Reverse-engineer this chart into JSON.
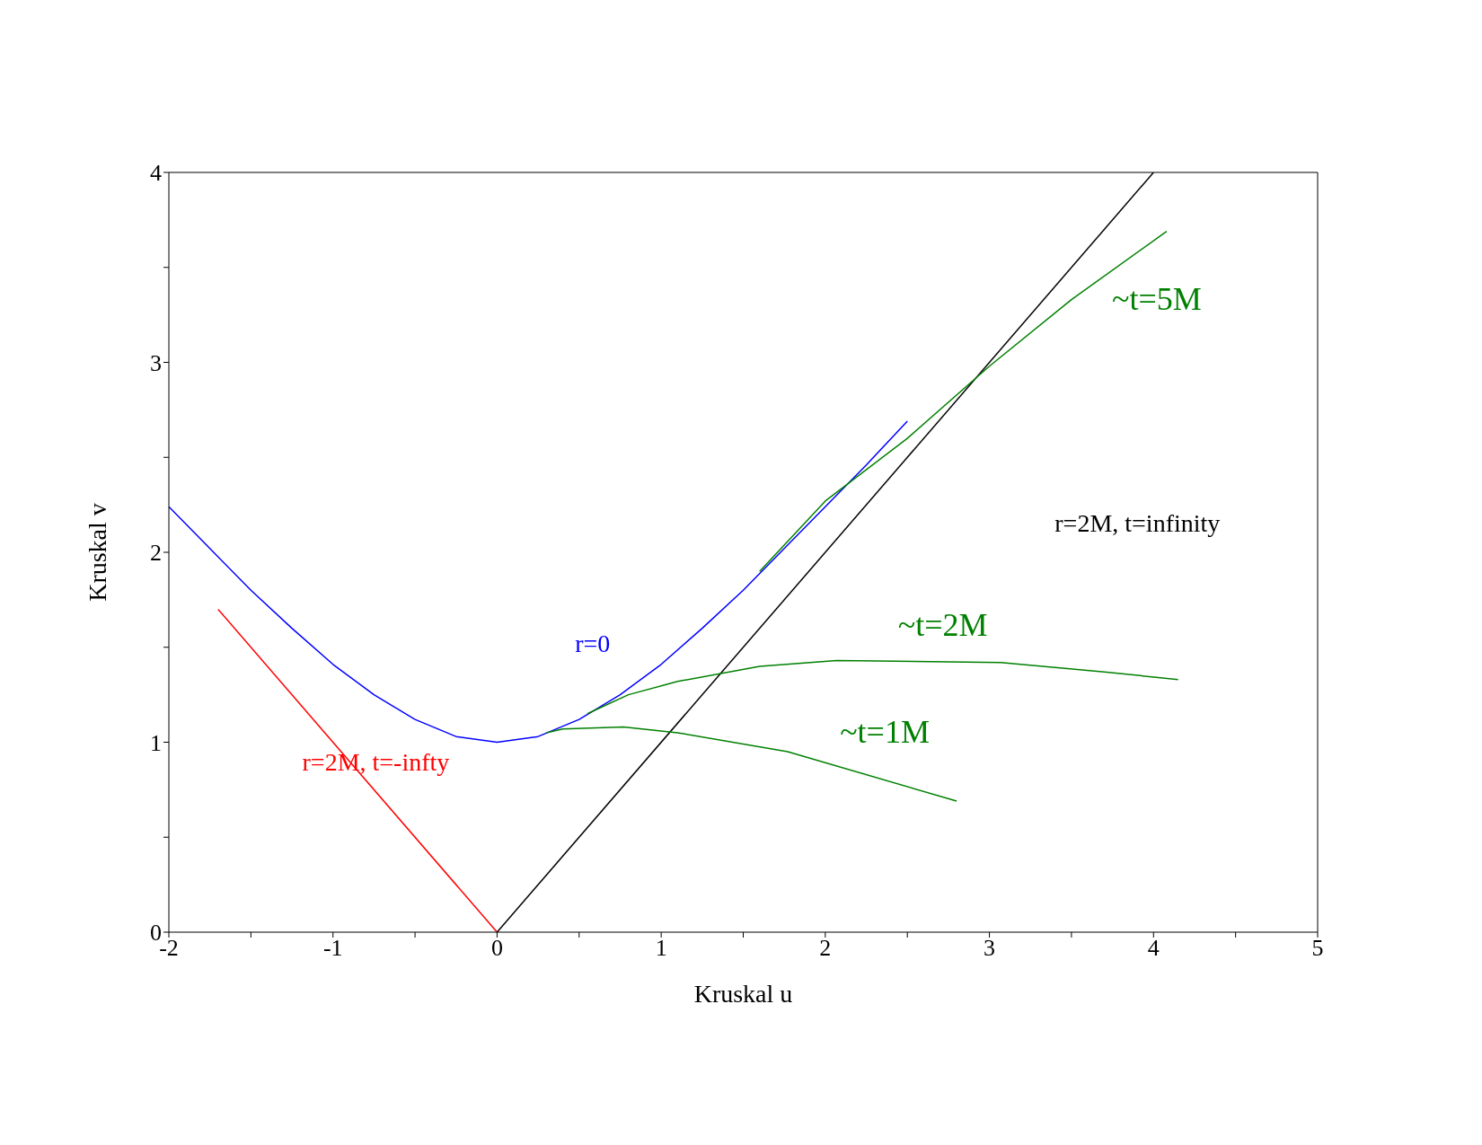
{
  "chart_data": {
    "type": "line",
    "xlabel": "Kruskal u",
    "ylabel": "Kruskal v",
    "xlim": [
      -2,
      5
    ],
    "ylim": [
      0,
      4
    ],
    "xticks": [
      -2,
      {
        "value": -1.5,
        "label": null
      },
      -1,
      {
        "value": -0.5,
        "label": null
      },
      0,
      {
        "value": 0.5,
        "label": null
      },
      1,
      {
        "value": 1.5,
        "label": null
      },
      2,
      {
        "value": 2.5,
        "label": null
      },
      3,
      {
        "value": 3.5,
        "label": null
      },
      4,
      {
        "value": 4.5,
        "label": null
      },
      5
    ],
    "yticks": [
      0,
      {
        "value": 0.5,
        "label": null
      },
      1,
      {
        "value": 1.5,
        "label": null
      },
      2,
      {
        "value": 2.5,
        "label": null
      },
      3,
      {
        "value": 3.5,
        "label": null
      },
      4
    ],
    "grid": false,
    "legend": false,
    "marker": "none",
    "line_style": "solid",
    "series": [
      {
        "name": "r=0",
        "color": "#0000ff",
        "x": [
          -2,
          -1.75,
          -1.5,
          -1.25,
          -1,
          -0.75,
          -0.5,
          -0.25,
          0,
          0.25,
          0.5,
          0.75,
          1,
          1.25,
          1.5,
          1.75,
          2,
          2.25,
          2.5
        ],
        "values": [
          2.24,
          2.02,
          1.8,
          1.6,
          1.41,
          1.25,
          1.12,
          1.03,
          1,
          1.03,
          1.12,
          1.25,
          1.41,
          1.6,
          1.8,
          2.02,
          2.24,
          2.46,
          2.69
        ]
      },
      {
        "name": "r=2M, t=-infty",
        "color": "#ff0000",
        "x": [
          -1.7,
          0
        ],
        "values": [
          1.7,
          0
        ]
      },
      {
        "name": "r=2M, t=infinity",
        "color": "#000000",
        "x": [
          0,
          4
        ],
        "values": [
          0,
          4
        ]
      },
      {
        "name": "~t=5M",
        "color": "#008000",
        "x": [
          1.6,
          2,
          2.5,
          3,
          3.5,
          4.08
        ],
        "values": [
          1.9,
          2.27,
          2.6,
          2.98,
          3.33,
          3.69
        ]
      },
      {
        "name": "~t=2M",
        "color": "#008000",
        "x": [
          0.55,
          0.8,
          1.1,
          1.6,
          2.07,
          3.07,
          3.7,
          4.15
        ],
        "values": [
          1.15,
          1.25,
          1.32,
          1.4,
          1.43,
          1.42,
          1.37,
          1.33
        ]
      },
      {
        "name": "~t=1M",
        "color": "#008000",
        "x": [
          0.3,
          0.4,
          0.77,
          1.1,
          1.77,
          2.8
        ],
        "values": [
          1.05,
          1.07,
          1.08,
          1.05,
          0.95,
          0.69
        ]
      }
    ]
  }
}
